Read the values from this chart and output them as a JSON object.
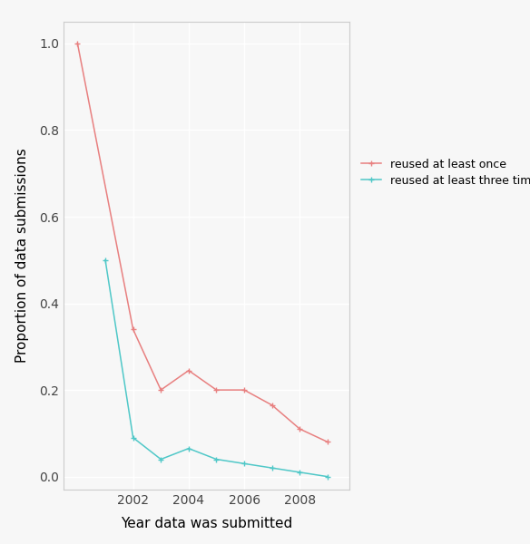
{
  "x_once": [
    2000,
    2002,
    2003,
    2004,
    2005,
    2006,
    2007,
    2008,
    2009
  ],
  "y_once": [
    1.0,
    0.34,
    0.2,
    0.245,
    0.2,
    0.2,
    0.165,
    0.11,
    0.08
  ],
  "x_three": [
    2001,
    2002,
    2003,
    2004,
    2005,
    2006,
    2007,
    2008,
    2009
  ],
  "y_three": [
    0.5,
    0.09,
    0.04,
    0.065,
    0.04,
    0.03,
    0.02,
    0.01,
    0.0
  ],
  "color_once": "#e88080",
  "color_three": "#50c8c8",
  "label_once": "reused at least once",
  "label_three": "reused at least three times",
  "xlabel": "Year data was submitted",
  "ylabel": "Proportion of data submissions",
  "xlim": [
    1999.5,
    2009.8
  ],
  "ylim": [
    -0.03,
    1.05
  ],
  "xticks": [
    2002,
    2004,
    2006,
    2008
  ],
  "yticks": [
    0.0,
    0.2,
    0.4,
    0.6,
    0.8,
    1.0
  ],
  "background_color": "#f7f7f7",
  "grid_color": "#ffffff",
  "marker": "+",
  "marker_size": 5,
  "linewidth": 1.1,
  "legend_fontsize": 9,
  "axis_label_fontsize": 11,
  "tick_fontsize": 10
}
